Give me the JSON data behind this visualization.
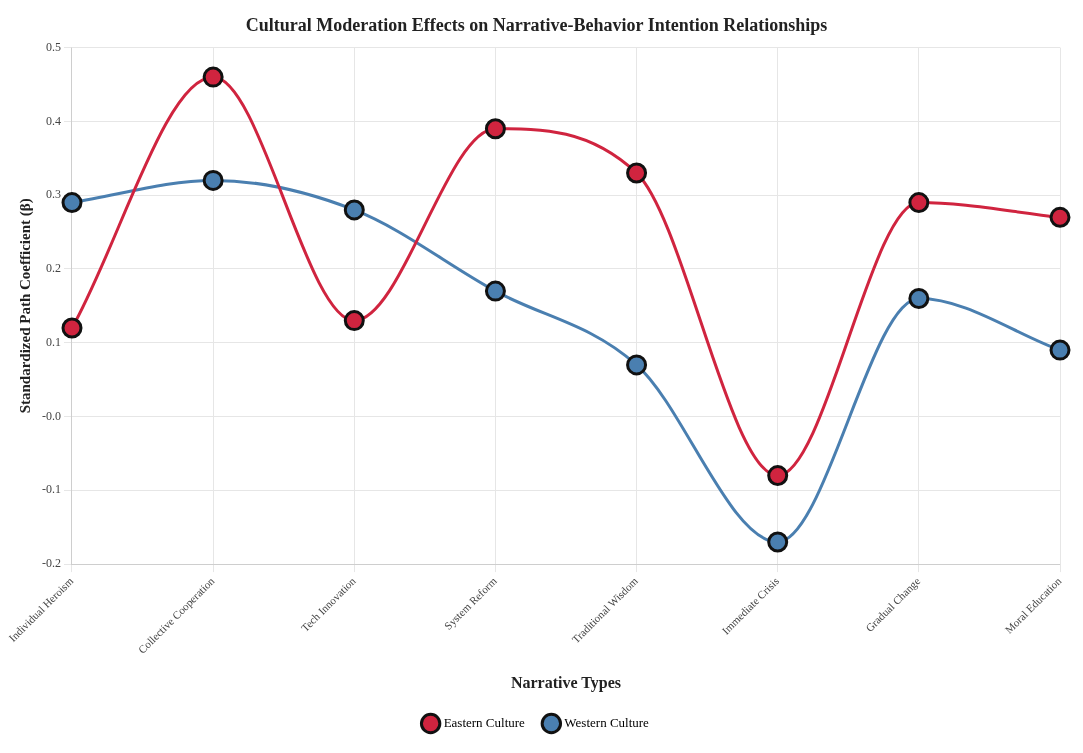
{
  "chart_data": {
    "type": "line",
    "title": "Cultural Moderation Effects on Narrative-Behavior Intention Relationships",
    "xlabel": "Narrative Types",
    "ylabel": "Standardized Path Coefficient (β)",
    "categories": [
      "Individual Heroism",
      "Collective Cooperation",
      "Tech Innovation",
      "System Reform",
      "Traditional Wisdom",
      "Immediate Crisis",
      "Gradual Change",
      "Moral Education"
    ],
    "series": [
      {
        "name": "Eastern Culture",
        "color": "#d0243f",
        "values": [
          0.12,
          0.46,
          0.13,
          0.39,
          0.33,
          -0.08,
          0.29,
          0.27
        ]
      },
      {
        "name": "Western Culture",
        "color": "#4a7fb0",
        "values": [
          0.29,
          0.32,
          0.28,
          0.17,
          0.07,
          -0.17,
          0.16,
          0.09
        ]
      }
    ],
    "ylim": [
      -0.2,
      0.5
    ],
    "yticks": [
      -0.2,
      -0.1,
      {
        "value": 0,
        "label": "-0.0"
      },
      0.1,
      0.2,
      0.3,
      0.4,
      0.5
    ],
    "grid": true,
    "legend": "bottom",
    "marker": "circle",
    "line_style": "solid"
  }
}
